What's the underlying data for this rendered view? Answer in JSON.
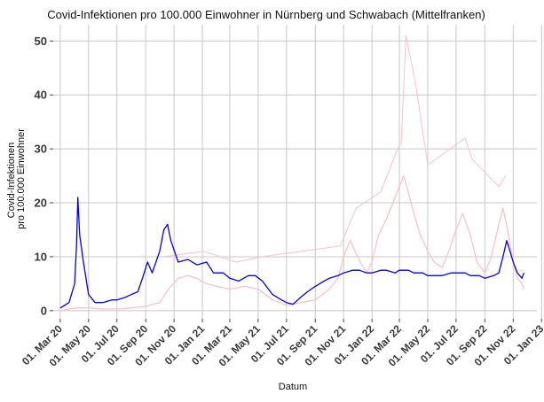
{
  "chart_data": {
    "type": "line",
    "title": "Covid-Infektionen pro 100.000 Einwohner in Nürnberg und Schwabach (Mittelfranken)",
    "xlabel": "Datum",
    "ylabel": [
      "Covid-Infektionen",
      "pro 100.000 Einwohner"
    ],
    "xlim": [
      "2020-02-15",
      "2022-12-22"
    ],
    "ylim": [
      -1.5,
      53
    ],
    "grid": true,
    "legend": "none",
    "y_ticks": [
      0,
      10,
      20,
      30,
      40,
      50
    ],
    "x_ticks": [
      {
        "date": "2020-03-01",
        "label": "01. Mar 20"
      },
      {
        "date": "2020-05-01",
        "label": "01. May 20"
      },
      {
        "date": "2020-07-01",
        "label": "01. Jul 20"
      },
      {
        "date": "2020-09-01",
        "label": "01. Sep 20"
      },
      {
        "date": "2020-11-01",
        "label": "01. Nov 20"
      },
      {
        "date": "2021-01-01",
        "label": "01. Jan 21"
      },
      {
        "date": "2021-03-01",
        "label": "01. Mar 21"
      },
      {
        "date": "2021-05-01",
        "label": "01. May 21"
      },
      {
        "date": "2021-07-01",
        "label": "01. Jul 21"
      },
      {
        "date": "2021-09-01",
        "label": "01. Sep 21"
      },
      {
        "date": "2021-11-01",
        "label": "01. Nov 21"
      },
      {
        "date": "2022-01-01",
        "label": "01. Jan 22"
      },
      {
        "date": "2022-03-01",
        "label": "01. Mar 22"
      },
      {
        "date": "2022-05-01",
        "label": "01. May 22"
      },
      {
        "date": "2022-07-01",
        "label": "01. Jul 22"
      },
      {
        "date": "2022-09-01",
        "label": "01. Sep 22"
      },
      {
        "date": "2022-11-01",
        "label": "01. Nov 22"
      },
      {
        "date": "2023-01-01",
        "label": "01. Jan 23"
      }
    ],
    "series": [
      {
        "color": "#0000ff",
        "x": [
          "2020-03-01",
          "2020-03-20",
          "2020-04-01",
          "2020-04-05",
          "2020-04-08",
          "2020-04-12",
          "2020-04-20",
          "2020-05-01",
          "2020-05-15",
          "2020-06-01",
          "2020-06-20",
          "2020-07-01",
          "2020-07-20",
          "2020-08-01",
          "2020-08-15",
          "2020-08-25",
          "2020-09-05",
          "2020-09-15",
          "2020-10-01",
          "2020-10-10",
          "2020-10-18",
          "2020-10-25",
          "2020-11-10",
          "2020-12-01",
          "2020-12-20",
          "2021-01-10",
          "2021-01-25",
          "2021-02-15",
          "2021-03-01",
          "2021-03-20",
          "2021-04-10",
          "2021-04-25",
          "2021-05-10",
          "2021-06-01",
          "2021-06-20",
          "2021-07-01",
          "2021-07-15",
          "2021-08-01",
          "2021-08-15",
          "2021-09-01",
          "2021-09-20",
          "2021-10-01",
          "2021-10-20",
          "2021-11-01",
          "2021-11-20",
          "2021-12-05",
          "2021-12-20",
          "2022-01-01",
          "2022-01-20",
          "2022-02-01",
          "2022-02-20",
          "2022-03-01",
          "2022-03-20",
          "2022-04-01",
          "2022-04-20",
          "2022-05-01",
          "2022-05-20",
          "2022-06-01",
          "2022-06-20",
          "2022-07-01",
          "2022-07-20",
          "2022-08-01",
          "2022-08-20",
          "2022-09-01",
          "2022-09-20",
          "2022-10-01",
          "2022-10-10",
          "2022-10-18",
          "2022-11-01",
          "2022-11-10",
          "2022-11-20",
          "2022-11-24"
        ],
        "y": [
          0.5,
          1.5,
          5,
          12,
          21,
          14,
          9,
          3,
          1.5,
          1.5,
          2,
          2,
          2.5,
          3,
          3.5,
          6,
          9,
          7,
          11,
          15,
          16,
          13,
          9,
          9.5,
          8.5,
          9,
          7,
          7,
          6,
          5.5,
          6.5,
          6.5,
          5.5,
          3,
          2,
          1.5,
          1.2,
          2.5,
          3.5,
          4.5,
          5.5,
          6,
          6.5,
          7,
          7.5,
          7.5,
          7,
          7,
          7.5,
          7.5,
          7,
          7.5,
          7.5,
          7,
          7,
          6.5,
          6.5,
          6.5,
          7,
          7,
          7,
          6.5,
          6.5,
          6,
          6.5,
          7,
          10,
          13,
          9,
          7,
          6,
          7
        ]
      },
      {
        "color": "#ffc0cb",
        "x": [
          "2020-03-01",
          "2020-04-01",
          "2020-05-01",
          "2020-06-01",
          "2020-07-01",
          "2020-08-01",
          "2020-09-01",
          "2020-10-01",
          "2020-10-20",
          "2020-11-10",
          "2020-12-01",
          "2020-12-20",
          "2021-01-10",
          "2021-02-01",
          "2021-03-01",
          "2021-04-01",
          "2021-05-01",
          "2021-06-01",
          "2021-07-01",
          "2021-08-01",
          "2021-09-01",
          "2021-10-01",
          "2021-10-20",
          "2021-11-01",
          "2021-11-15",
          "2021-12-01",
          "2021-12-20",
          "2022-01-01",
          "2022-01-15",
          "2022-02-01",
          "2022-02-15",
          "2022-03-01",
          "2022-03-10",
          "2022-03-20",
          "2022-04-01",
          "2022-04-15",
          "2022-05-01",
          "2022-05-15",
          "2022-06-01",
          "2022-06-15",
          "2022-07-01",
          "2022-07-15",
          "2022-08-01",
          "2022-08-15",
          "2022-09-01",
          "2022-09-15",
          "2022-10-01",
          "2022-10-10",
          "2022-10-20",
          "2022-11-01",
          "2022-11-10",
          "2022-11-20",
          "2022-11-24"
        ],
        "y": [
          0,
          0.5,
          0.5,
          0.3,
          0.3,
          0.5,
          0.8,
          1.5,
          4,
          6,
          6.5,
          6,
          5,
          4.5,
          4,
          4.5,
          4,
          2,
          1,
          1.5,
          2,
          4,
          6,
          10,
          13,
          10,
          7,
          9,
          14,
          17,
          20,
          23,
          25,
          22,
          18,
          14,
          11,
          9,
          8,
          11,
          15,
          18,
          14,
          9,
          7,
          10,
          16,
          19,
          15,
          9,
          6,
          5,
          4
        ]
      },
      {
        "color": "#ffc0cb",
        "x": [
          "2020-10-10",
          "2021-01-05",
          "2021-03-15",
          "2021-05-10",
          "2021-10-25",
          "2021-11-28",
          "2022-01-20",
          "2022-02-25",
          "2022-03-05",
          "2022-03-15",
          "2022-04-05",
          "2022-05-01",
          "2022-07-20",
          "2022-08-05",
          "2022-10-01",
          "2022-10-15"
        ],
        "y": [
          10,
          11,
          9,
          10,
          12,
          19,
          22,
          30,
          31,
          51,
          42,
          27,
          32,
          28,
          23,
          25
        ]
      }
    ]
  }
}
